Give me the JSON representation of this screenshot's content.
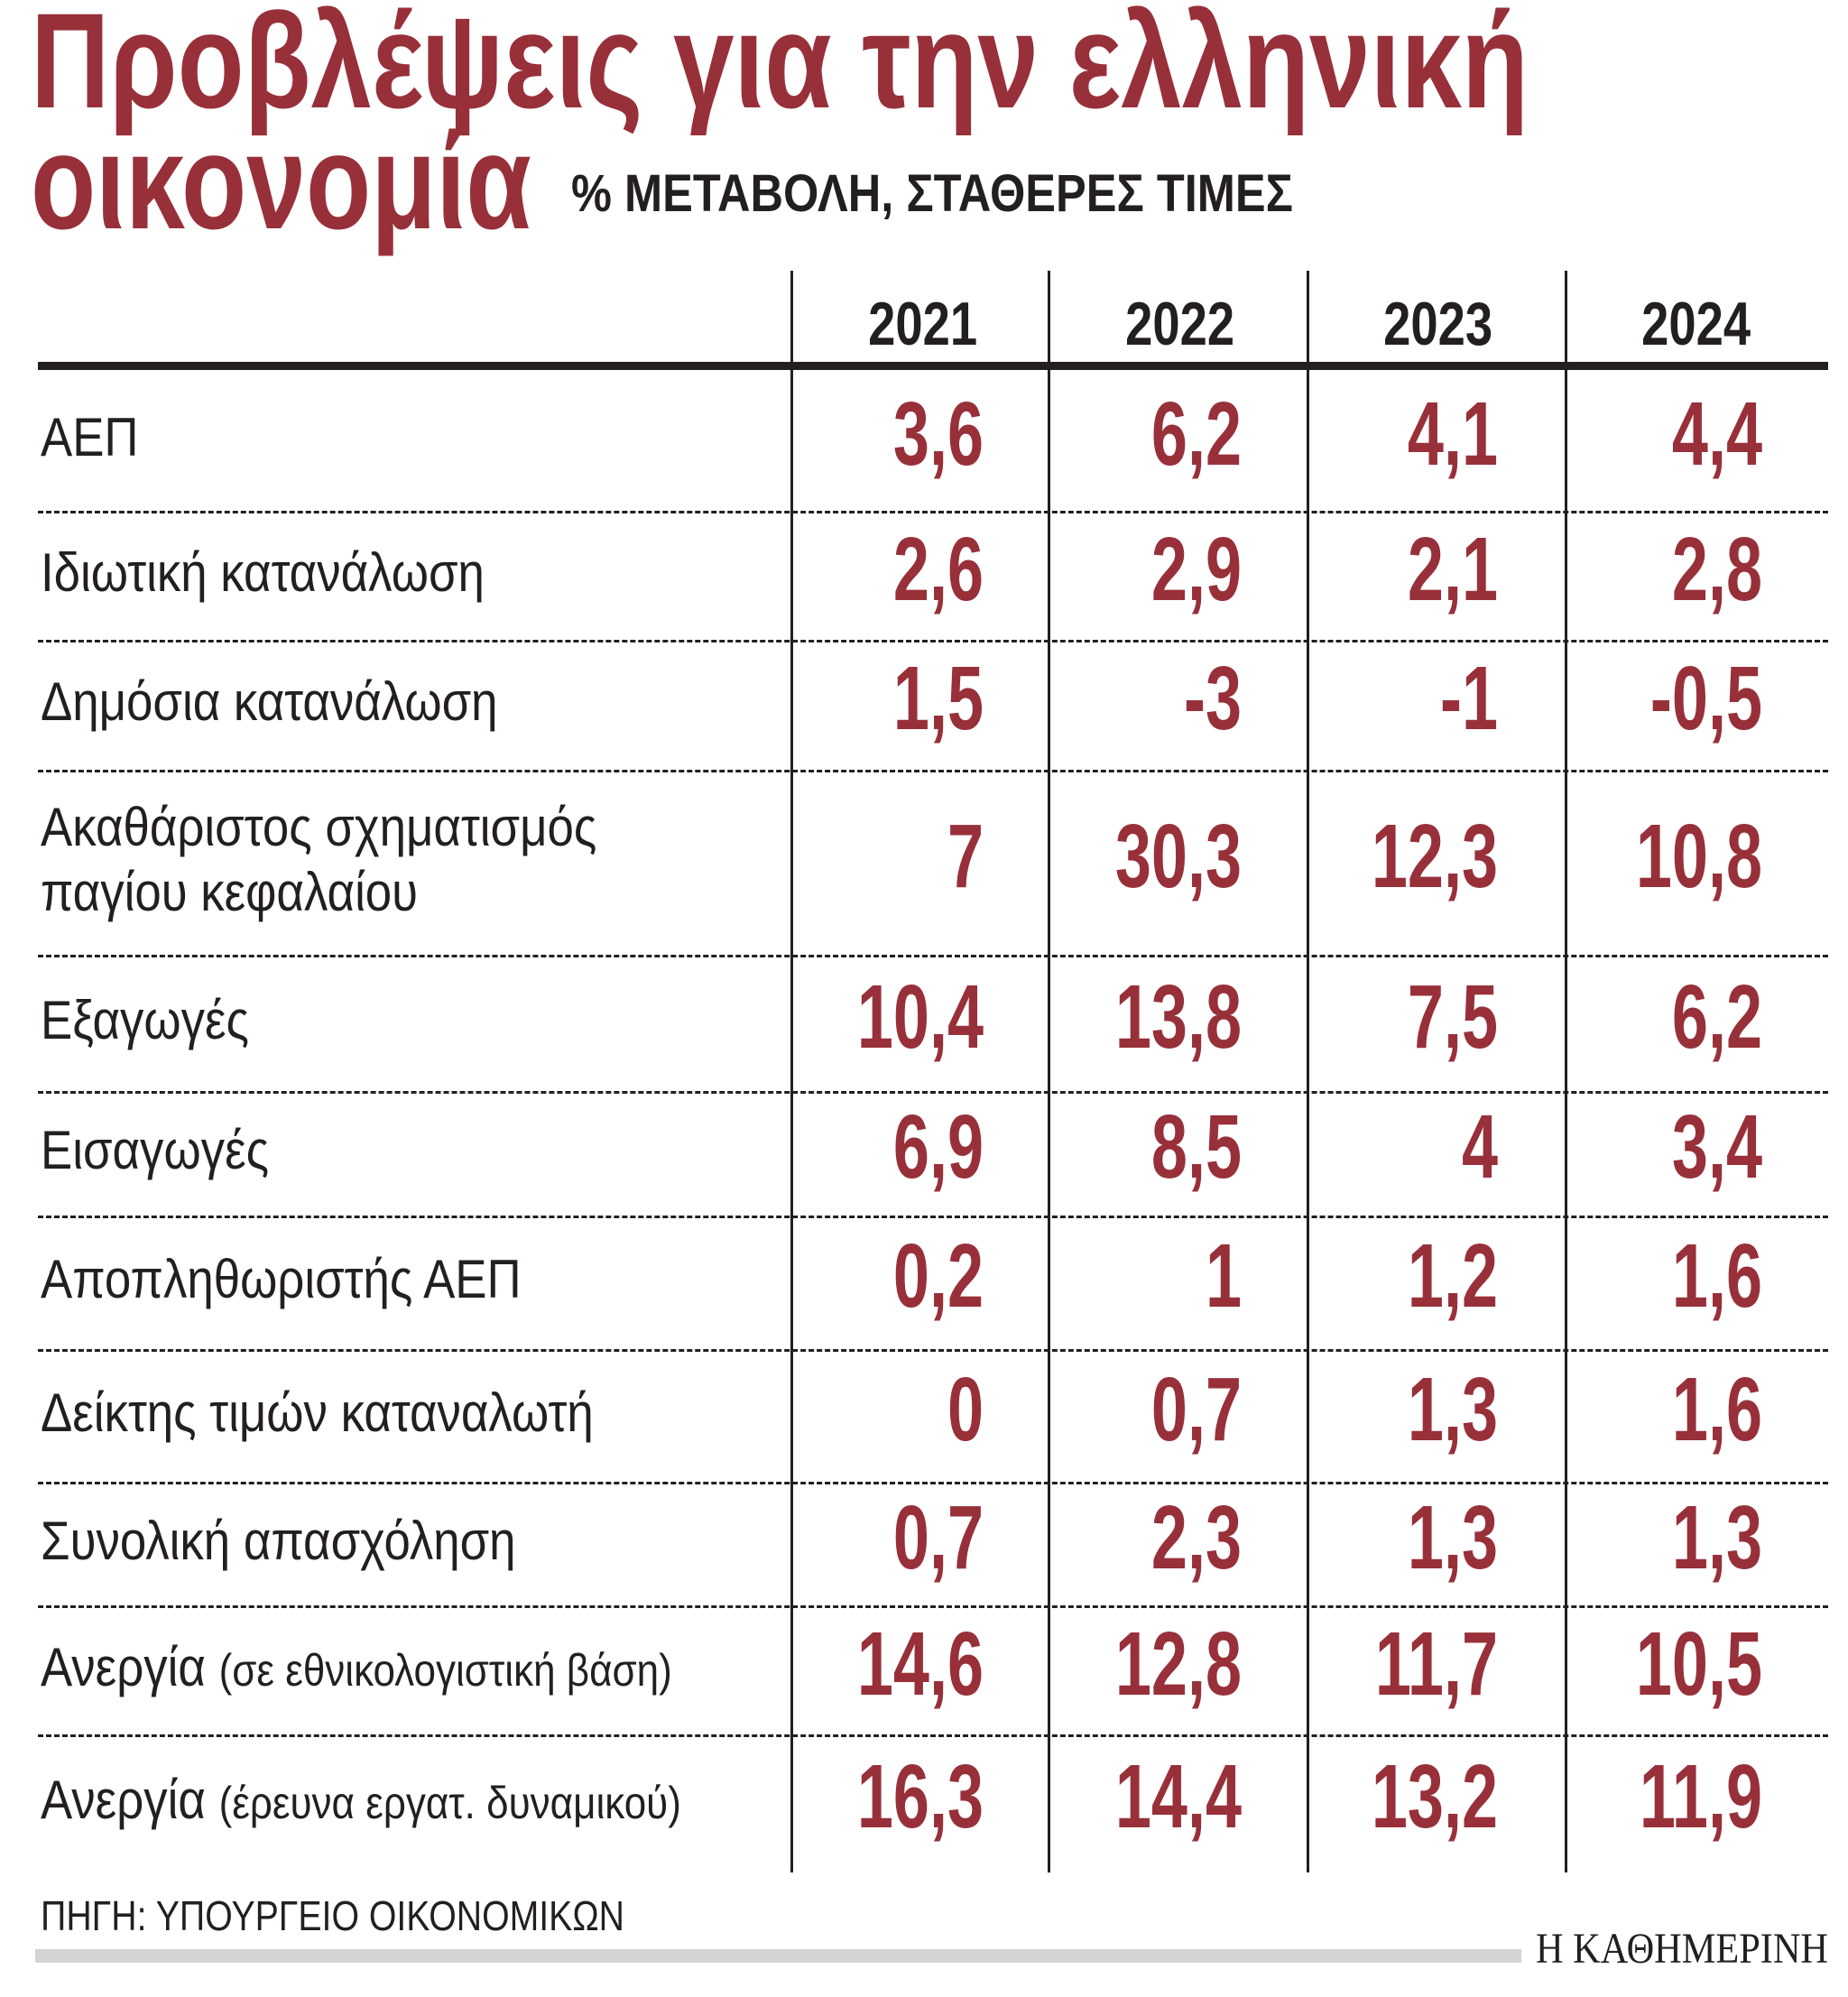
{
  "title": {
    "line1": "Προβλέψεις για την ελληνική",
    "line2": "οικονομία",
    "subtitle": "% ΜΕΤΑΒΟΛΗ, ΣΤΑΘΕΡΕΣ ΤΙΜΕΣ"
  },
  "colors": {
    "accent": "#98303a",
    "text": "#231f20",
    "bar": "#d3d4d6"
  },
  "table": {
    "years": [
      "2021",
      "2022",
      "2023",
      "2024"
    ],
    "rows": [
      {
        "label": "ΑΕΠ",
        "values": [
          "3,6",
          "6,2",
          "4,1",
          "4,4"
        ]
      },
      {
        "label": "Ιδιωτική κατανάλωση",
        "values": [
          "2,6",
          "2,9",
          "2,1",
          "2,8"
        ]
      },
      {
        "label": "Δημόσια κατανάλωση",
        "values": [
          "1,5",
          "-3",
          "-1",
          "-0,5"
        ]
      },
      {
        "label": "Ακαθάριστος σχηματισμός",
        "label2": "παγίου κεφαλαίου",
        "values": [
          "7",
          "30,3",
          "12,3",
          "10,8"
        ]
      },
      {
        "label": "Εξαγωγές",
        "values": [
          "10,4",
          "13,8",
          "7,5",
          "6,2"
        ]
      },
      {
        "label": "Εισαγωγές",
        "values": [
          "6,9",
          "8,5",
          "4",
          "3,4"
        ]
      },
      {
        "label": "Αποπληθωριστής ΑΕΠ",
        "values": [
          "0,2",
          "1",
          "1,2",
          "1,6"
        ]
      },
      {
        "label": "Δείκτης τιμών καταναλωτή",
        "values": [
          "0",
          "0,7",
          "1,3",
          "1,6"
        ]
      },
      {
        "label": "Συνολική απασχόληση",
        "values": [
          "0,7",
          "2,3",
          "1,3",
          "1,3"
        ]
      },
      {
        "label": "Ανεργία",
        "note": "(σε εθνικολογιστική βάση)",
        "values": [
          "14,6",
          "12,8",
          "11,7",
          "10,5"
        ]
      },
      {
        "label": "Ανεργία",
        "note": "(έρευνα εργατ. δυναμικού)",
        "values": [
          "16,3",
          "14,4",
          "13,2",
          "11,9"
        ]
      }
    ]
  },
  "footer": {
    "source": "ΠΗΓΗ: ΥΠΟΥΡΓΕΙΟ ΟΙΚΟΝΟΜΙΚΩΝ",
    "logo": "Η ΚΑΘΗΜΕΡΙΝΗ"
  }
}
